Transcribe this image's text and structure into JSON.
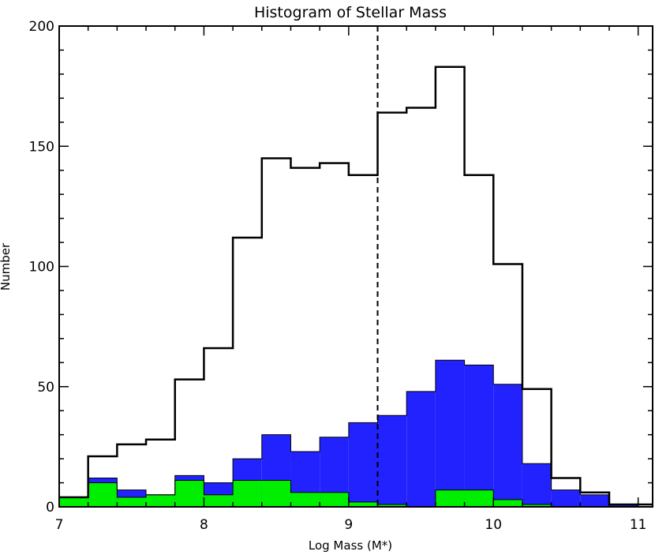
{
  "chart_data": {
    "type": "histogram",
    "title": "Histogram of Stellar Mass",
    "xlabel": "Log Mass (M*)",
    "ylabel": "Number",
    "xlim": [
      7,
      11.1
    ],
    "ylim": [
      0,
      200
    ],
    "x_ticks": [
      "7",
      "8",
      "9",
      "10",
      "11"
    ],
    "y_ticks": [
      "0",
      "50",
      "100",
      "150",
      "200"
    ],
    "bin_edges": [
      7.0,
      7.2,
      7.4,
      7.6,
      7.8,
      8.0,
      8.2,
      8.4,
      8.6,
      8.8,
      9.0,
      9.2,
      9.4,
      9.6,
      9.8,
      10.0,
      10.2,
      10.4,
      10.6,
      10.8,
      11.0,
      11.1
    ],
    "series": [
      {
        "style": "outline",
        "color": "#000000",
        "values": [
          4,
          21,
          26,
          28,
          53,
          66,
          112,
          145,
          141,
          143,
          138,
          164,
          166,
          183,
          138,
          101,
          49,
          12,
          6,
          1,
          1
        ]
      },
      {
        "style": "filled",
        "color": "#2222ff",
        "values": [
          4,
          12,
          7,
          5,
          13,
          10,
          20,
          30,
          23,
          29,
          35,
          38,
          48,
          61,
          59,
          51,
          18,
          7,
          5,
          1,
          0
        ]
      },
      {
        "style": "filled",
        "color": "#00ee00",
        "values": [
          4,
          10,
          4,
          5,
          11,
          5,
          11,
          11,
          6,
          6,
          2,
          1,
          0,
          7,
          7,
          3,
          1,
          0,
          0,
          0,
          0
        ]
      }
    ],
    "vline": {
      "x": 9.2,
      "style": "dashed"
    },
    "grid": false
  }
}
